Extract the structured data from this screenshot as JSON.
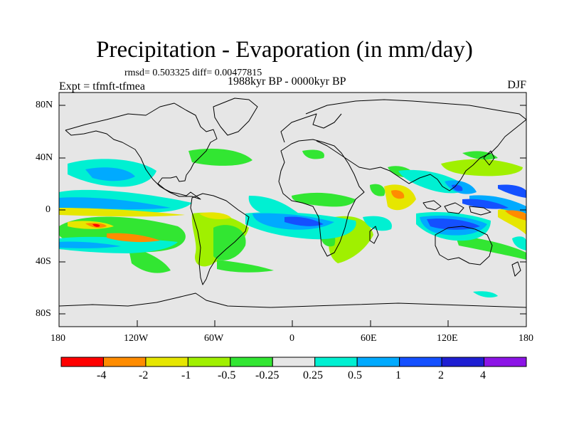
{
  "title": "Precipitation - Evaporation (in mm/day)",
  "stats": "rmsd= 0.503325 diff= 0.00477815",
  "period": "1988kyr BP - 0000kyr BP",
  "experiment": "Expt = tfmft-tfmea",
  "season": "DJF",
  "lat_ticks": [
    "80N",
    "40N",
    "0",
    "40S",
    "80S"
  ],
  "lon_ticks": [
    "180",
    "120W",
    "60W",
    "0",
    "60E",
    "120E",
    "180"
  ],
  "colorbar": {
    "labels": [
      "-4",
      "-2",
      "-1",
      "-0.5",
      "-0.25",
      "0.25",
      "0.5",
      "1",
      "2",
      "4"
    ],
    "colors": [
      "#ff0000",
      "#ff8c00",
      "#e6e600",
      "#a0f000",
      "#32e632",
      "#e6e6e6",
      "#00f0d2",
      "#00aaff",
      "#1450ff",
      "#1e1ed2",
      "#8c14e6"
    ]
  },
  "colors": {
    "ocean_bg": "#e6e6e6",
    "coast": "#000000"
  }
}
